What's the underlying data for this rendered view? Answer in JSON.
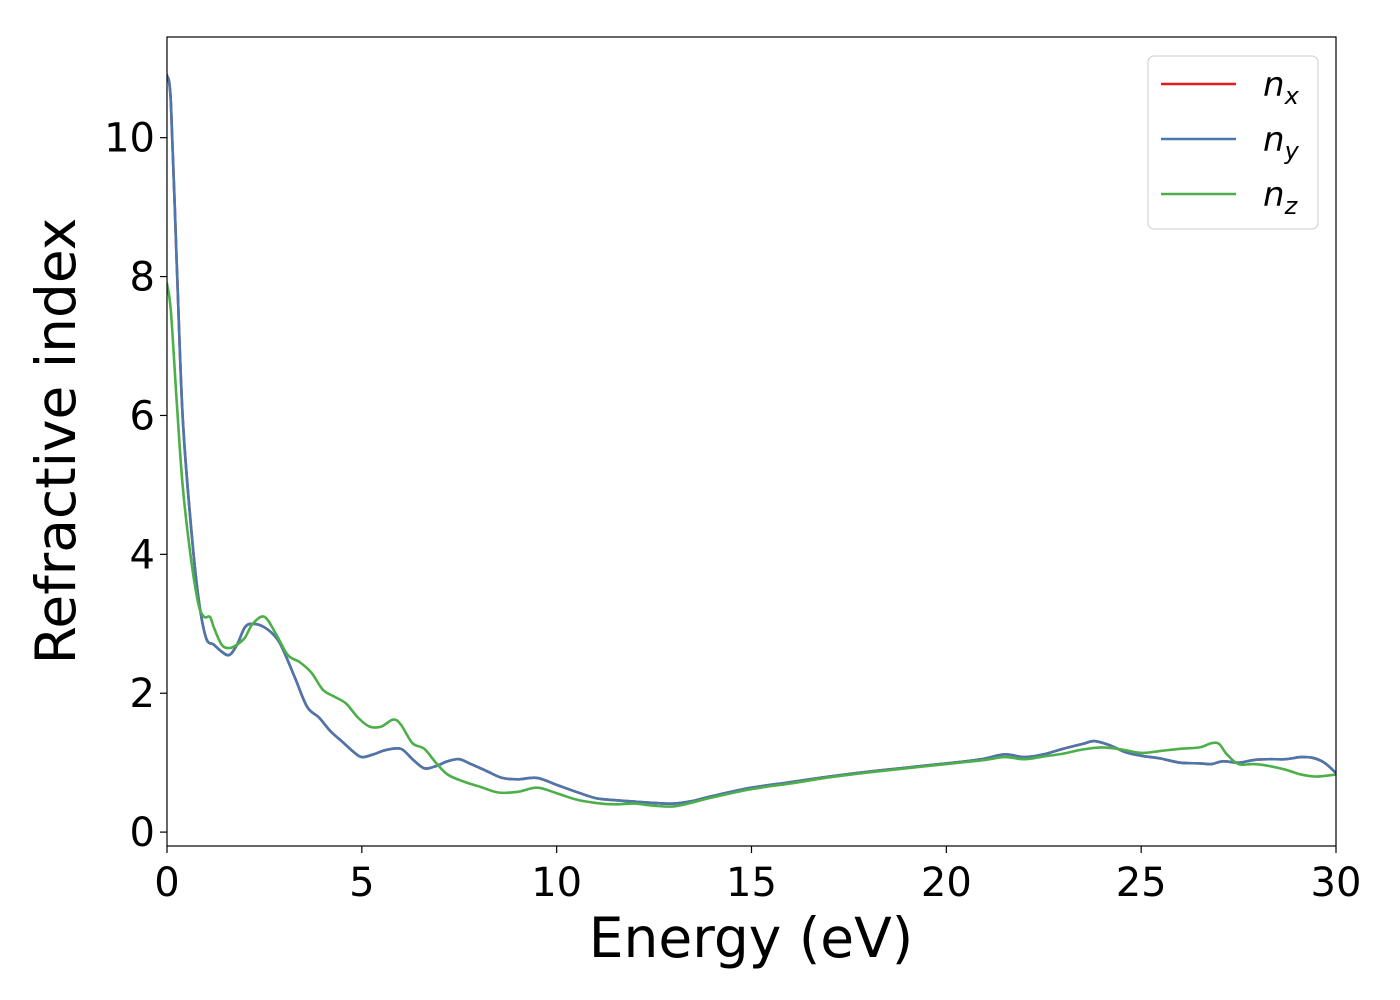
{
  "chart_data": {
    "type": "line",
    "xlabel": "Energy (eV)",
    "ylabel": "Refractive index",
    "xlim": [
      0,
      30
    ],
    "ylim": [
      -0.2,
      11.45
    ],
    "xticks": [
      0,
      5,
      10,
      15,
      20,
      25,
      30
    ],
    "xtick_labels": [
      "0",
      "5",
      "10",
      "15",
      "20",
      "25",
      "30"
    ],
    "yticks": [
      0,
      2,
      4,
      6,
      8,
      10
    ],
    "ytick_labels": [
      "0",
      "2",
      "4",
      "6",
      "8",
      "10"
    ],
    "grid": false,
    "legend_position": "top-right",
    "series": [
      {
        "name": "n",
        "subscript": "x",
        "color": "#e41a1c",
        "x": [
          0,
          0.1,
          0.25,
          0.4,
          0.6,
          0.8,
          1.0,
          1.2,
          1.4,
          1.6,
          1.8,
          2.0,
          2.2,
          2.5,
          2.8,
          3.0,
          3.3,
          3.6,
          3.9,
          4.2,
          4.5,
          4.8,
          5.0,
          5.3,
          5.6,
          6.0,
          6.3,
          6.6,
          6.9,
          7.2,
          7.5,
          7.8,
          8.2,
          8.6,
          9.0,
          9.5,
          10.0,
          10.5,
          11.0,
          11.5,
          12.0,
          12.5,
          13.0,
          13.5,
          14.0,
          15.0,
          16.0,
          17.0,
          18.0,
          19.0,
          20.0,
          20.5,
          21.0,
          21.5,
          22.0,
          22.5,
          23.0,
          23.5,
          23.8,
          24.2,
          24.6,
          25.0,
          25.5,
          26.0,
          26.5,
          26.8,
          27.1,
          27.5,
          27.9,
          28.3,
          28.7,
          29.1,
          29.4,
          29.7,
          30.0
        ],
        "y": [
          10.9,
          10.5,
          8.2,
          6.0,
          4.5,
          3.4,
          2.8,
          2.7,
          2.6,
          2.55,
          2.7,
          2.95,
          3.0,
          2.95,
          2.8,
          2.6,
          2.2,
          1.8,
          1.65,
          1.45,
          1.3,
          1.15,
          1.08,
          1.12,
          1.18,
          1.2,
          1.05,
          0.92,
          0.95,
          1.02,
          1.05,
          0.98,
          0.88,
          0.78,
          0.76,
          0.78,
          0.68,
          0.58,
          0.49,
          0.46,
          0.44,
          0.42,
          0.41,
          0.45,
          0.52,
          0.64,
          0.72,
          0.8,
          0.87,
          0.93,
          0.99,
          1.02,
          1.06,
          1.12,
          1.08,
          1.12,
          1.2,
          1.27,
          1.31,
          1.25,
          1.15,
          1.1,
          1.06,
          1.0,
          0.99,
          0.98,
          1.02,
          1.0,
          1.04,
          1.05,
          1.05,
          1.08,
          1.07,
          1.0,
          0.85
        ]
      },
      {
        "name": "n",
        "subscript": "y",
        "color": "#4a78ad",
        "x": [
          0,
          0.1,
          0.25,
          0.4,
          0.6,
          0.8,
          1.0,
          1.2,
          1.4,
          1.6,
          1.8,
          2.0,
          2.2,
          2.5,
          2.8,
          3.0,
          3.3,
          3.6,
          3.9,
          4.2,
          4.5,
          4.8,
          5.0,
          5.3,
          5.6,
          6.0,
          6.3,
          6.6,
          6.9,
          7.2,
          7.5,
          7.8,
          8.2,
          8.6,
          9.0,
          9.5,
          10.0,
          10.5,
          11.0,
          11.5,
          12.0,
          12.5,
          13.0,
          13.5,
          14.0,
          15.0,
          16.0,
          17.0,
          18.0,
          19.0,
          20.0,
          20.5,
          21.0,
          21.5,
          22.0,
          22.5,
          23.0,
          23.5,
          23.8,
          24.2,
          24.6,
          25.0,
          25.5,
          26.0,
          26.5,
          26.8,
          27.1,
          27.5,
          27.9,
          28.3,
          28.7,
          29.1,
          29.4,
          29.7,
          30.0
        ],
        "y": [
          10.9,
          10.5,
          8.2,
          6.0,
          4.5,
          3.4,
          2.8,
          2.7,
          2.6,
          2.55,
          2.7,
          2.95,
          3.0,
          2.95,
          2.8,
          2.6,
          2.2,
          1.8,
          1.65,
          1.45,
          1.3,
          1.15,
          1.08,
          1.12,
          1.18,
          1.2,
          1.05,
          0.92,
          0.95,
          1.02,
          1.05,
          0.98,
          0.88,
          0.78,
          0.76,
          0.78,
          0.68,
          0.58,
          0.49,
          0.46,
          0.44,
          0.42,
          0.41,
          0.45,
          0.52,
          0.64,
          0.72,
          0.8,
          0.87,
          0.93,
          0.99,
          1.02,
          1.06,
          1.12,
          1.08,
          1.12,
          1.2,
          1.27,
          1.31,
          1.25,
          1.15,
          1.1,
          1.06,
          1.0,
          0.99,
          0.98,
          1.02,
          1.0,
          1.04,
          1.05,
          1.05,
          1.08,
          1.07,
          1.0,
          0.85
        ]
      },
      {
        "name": "n",
        "subscript": "z",
        "color": "#4daf4a",
        "x": [
          0,
          0.1,
          0.25,
          0.4,
          0.6,
          0.8,
          0.95,
          1.1,
          1.2,
          1.4,
          1.6,
          1.8,
          2.0,
          2.2,
          2.5,
          2.8,
          3.1,
          3.4,
          3.7,
          4.0,
          4.3,
          4.6,
          4.9,
          5.2,
          5.5,
          5.8,
          6.0,
          6.3,
          6.6,
          6.9,
          7.2,
          7.6,
          8.0,
          8.5,
          9.0,
          9.5,
          10.0,
          10.5,
          11.0,
          11.5,
          12.0,
          12.5,
          13.0,
          13.5,
          14.0,
          15.0,
          16.0,
          17.0,
          18.0,
          19.0,
          20.0,
          20.5,
          21.0,
          21.5,
          22.0,
          22.5,
          23.0,
          23.5,
          24.0,
          24.5,
          25.0,
          25.5,
          26.0,
          26.5,
          26.8,
          27.0,
          27.2,
          27.5,
          27.9,
          28.3,
          28.7,
          29.1,
          29.5,
          30.0
        ],
        "y": [
          7.9,
          7.5,
          6.2,
          5.0,
          4.0,
          3.3,
          3.1,
          3.1,
          2.95,
          2.7,
          2.65,
          2.7,
          2.8,
          3.0,
          3.1,
          2.85,
          2.55,
          2.45,
          2.3,
          2.05,
          1.95,
          1.85,
          1.65,
          1.52,
          1.52,
          1.62,
          1.55,
          1.28,
          1.2,
          1.0,
          0.83,
          0.73,
          0.66,
          0.57,
          0.58,
          0.64,
          0.56,
          0.47,
          0.42,
          0.4,
          0.41,
          0.38,
          0.37,
          0.43,
          0.5,
          0.62,
          0.7,
          0.79,
          0.86,
          0.92,
          0.98,
          1.01,
          1.04,
          1.08,
          1.05,
          1.09,
          1.13,
          1.19,
          1.22,
          1.19,
          1.14,
          1.17,
          1.2,
          1.22,
          1.28,
          1.27,
          1.12,
          0.98,
          0.98,
          0.95,
          0.9,
          0.83,
          0.8,
          0.83
        ]
      }
    ]
  }
}
